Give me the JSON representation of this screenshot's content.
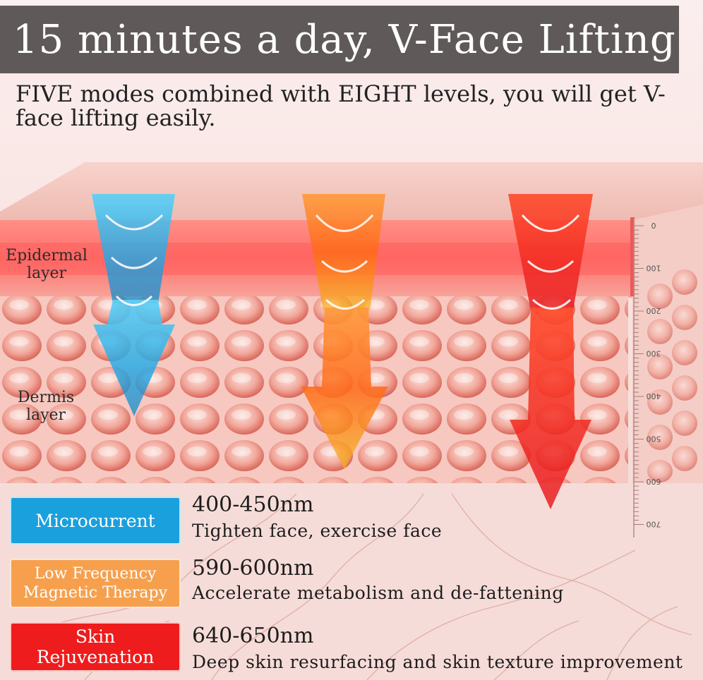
{
  "title": "15 minutes a day, V-Face Lifting",
  "subtitle": "FIVE modes combined with EIGHT levels, you will get V-face lifting easily.",
  "layers": {
    "epidermal": [
      "Epidermal",
      "layer"
    ],
    "dermis": [
      "Dermis",
      "layer"
    ]
  },
  "depth_scale": [
    "0",
    "100",
    "200",
    "300",
    "400",
    "500",
    "600",
    "700"
  ],
  "modes": [
    {
      "label": [
        "Microcurrent"
      ],
      "wavelength": "400-450nm",
      "description": "Tighten face, exercise face",
      "color": "#1aa0dc"
    },
    {
      "label": [
        "Low Frequency",
        "Magnetic Therapy"
      ],
      "wavelength": "590-600nm",
      "description": "Accelerate metabolism and de-fattening",
      "color": "#f6a04e"
    },
    {
      "label": [
        "Skin",
        "Rejuvenation"
      ],
      "wavelength": "640-650nm",
      "description": "Deep skin resurfacing and skin texture improvement",
      "color": "#ee1c1c"
    }
  ]
}
